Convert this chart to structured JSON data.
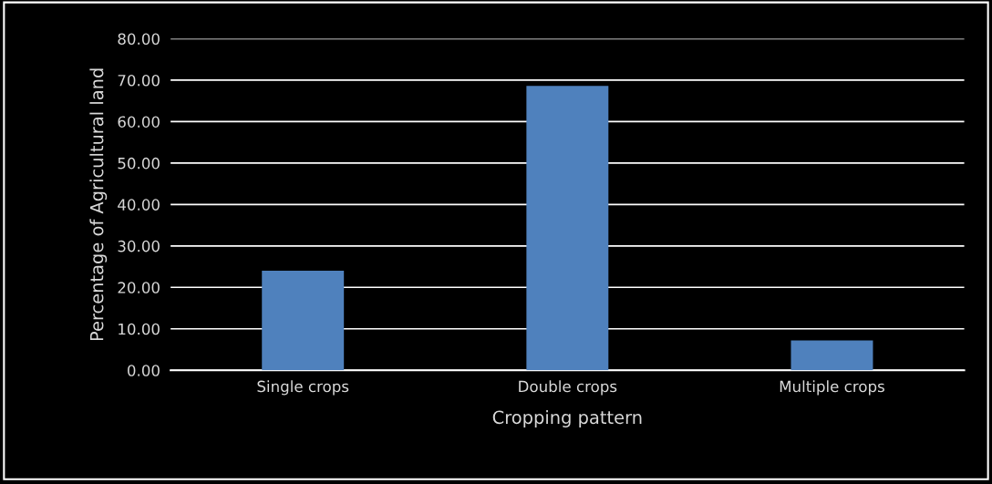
{
  "chart_data": {
    "type": "bar",
    "xlabel": "Cropping pattern",
    "ylabel": "Percentage of Agricultural land",
    "categories": [
      "Single crops",
      "Double crops",
      "Multiple crops"
    ],
    "values": [
      24.0,
      68.6,
      7.2
    ],
    "color": "#4f81bd",
    "ylim": [
      0,
      80
    ],
    "yticks": [
      {
        "value": 0,
        "label": "0.00"
      },
      {
        "value": 10,
        "label": "10.00"
      },
      {
        "value": 20,
        "label": "20.00"
      },
      {
        "value": 30,
        "label": "30.00"
      },
      {
        "value": 40,
        "label": "40.00"
      },
      {
        "value": 50,
        "label": "50.00"
      },
      {
        "value": 60,
        "label": "60.00"
      },
      {
        "value": 70,
        "label": "70.00"
      },
      {
        "value": 80,
        "label": "80.00"
      }
    ],
    "grid": "y",
    "legend": false
  }
}
